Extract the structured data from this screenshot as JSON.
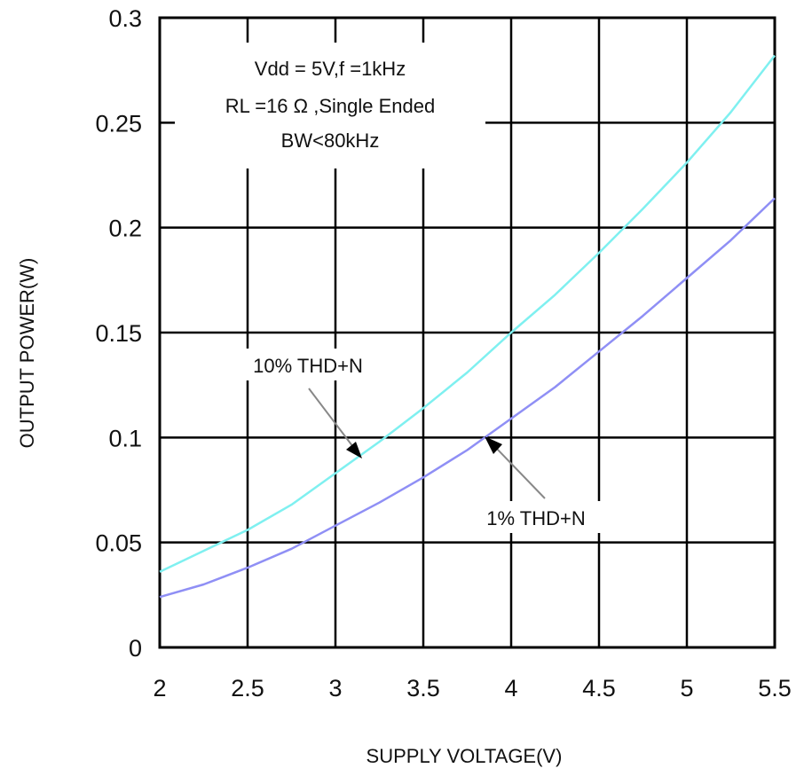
{
  "chart_data": {
    "type": "line",
    "xlabel": "SUPPLY VOLTAGE(V)",
    "ylabel": "OUTPUT POWER(W)",
    "xlim": [
      2,
      5.5
    ],
    "ylim": [
      0,
      0.3
    ],
    "x_ticks": [
      "2",
      "2.5",
      "3",
      "3.5",
      "4",
      "4.5",
      "5",
      "5.5"
    ],
    "y_ticks": [
      "0",
      "0.05",
      "0.1",
      "0.15",
      "0.2",
      "0.25",
      "0.3"
    ],
    "grid": true,
    "conditions": [
      "Vdd = 5V,f =1kHz",
      "RL =16 Ω ,Single Ended",
      "BW<80kHz"
    ],
    "series": [
      {
        "name": "10% THD+N",
        "color": "#7ff0f0",
        "x": [
          2.0,
          2.25,
          2.5,
          2.75,
          3.0,
          3.25,
          3.5,
          3.75,
          4.0,
          4.25,
          4.5,
          4.75,
          5.0,
          5.25,
          5.5
        ],
        "y": [
          0.036,
          0.046,
          0.056,
          0.068,
          0.083,
          0.098,
          0.114,
          0.131,
          0.15,
          0.168,
          0.188,
          0.209,
          0.231,
          0.255,
          0.282
        ]
      },
      {
        "name": "1% THD+N",
        "color": "#8f8ff5",
        "x": [
          2.0,
          2.25,
          2.5,
          2.75,
          3.0,
          3.25,
          3.5,
          3.75,
          4.0,
          4.25,
          4.5,
          4.75,
          5.0,
          5.25,
          5.5
        ],
        "y": [
          0.024,
          0.03,
          0.038,
          0.047,
          0.058,
          0.069,
          0.081,
          0.094,
          0.109,
          0.124,
          0.141,
          0.158,
          0.176,
          0.194,
          0.214
        ]
      }
    ]
  }
}
